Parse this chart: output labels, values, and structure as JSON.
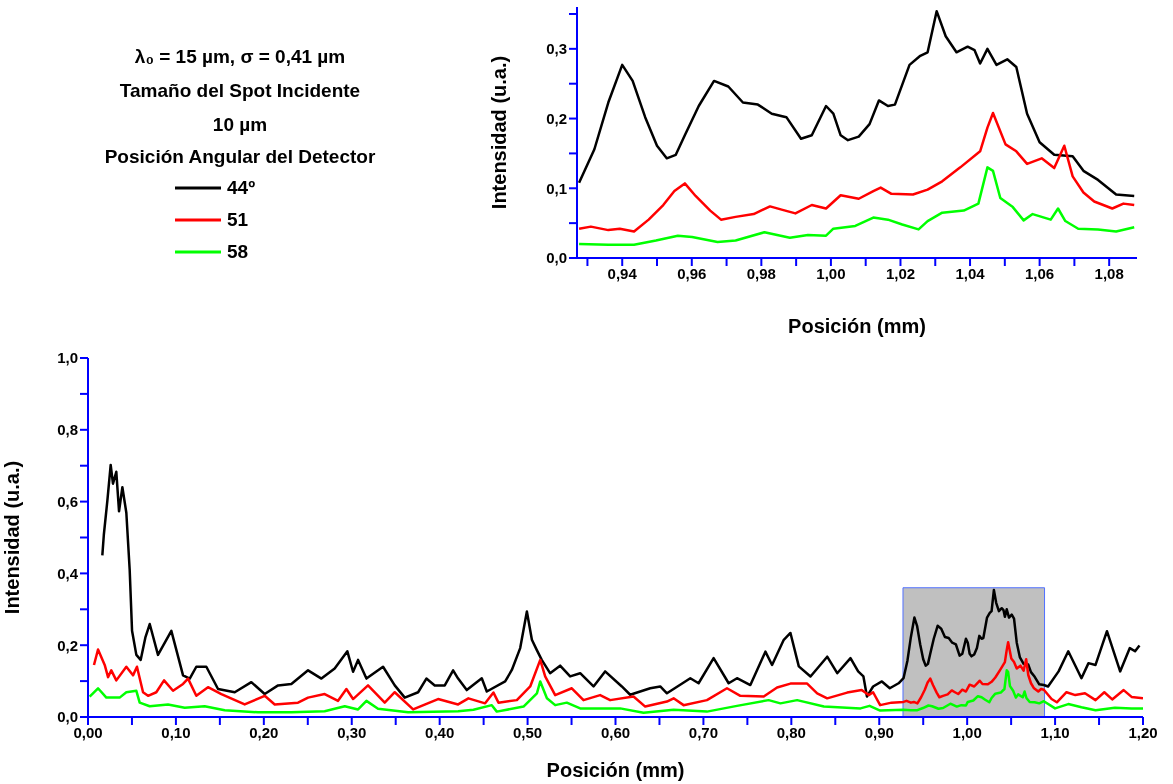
{
  "chart_data": [
    {
      "type": "line",
      "xlabel": "Posición (mm)",
      "ylabel": "Intensidad (u.a.)",
      "legend": "left",
      "legend_title": "Posición Angular del Detector",
      "annotations": [
        "λ₀ = 15  µm, σ = 0,41 µm",
        "Tamaño del Spot Incidente",
        "10 µm"
      ],
      "xlim": [
        0.927,
        1.088
      ],
      "ylim": [
        0,
        0.36
      ],
      "xticks": [
        {
          "value": 0.93,
          "label": null
        },
        {
          "value": 0.94,
          "label": "0,94"
        },
        {
          "value": 0.95,
          "label": null
        },
        {
          "value": 0.96,
          "label": "0,96"
        },
        {
          "value": 0.97,
          "label": null
        },
        {
          "value": 0.98,
          "label": "0,98"
        },
        {
          "value": 0.99,
          "label": null
        },
        {
          "value": 1.0,
          "label": "1,00"
        },
        {
          "value": 1.01,
          "label": null
        },
        {
          "value": 1.02,
          "label": "1,02"
        },
        {
          "value": 1.03,
          "label": null
        },
        {
          "value": 1.04,
          "label": "1,04"
        },
        {
          "value": 1.05,
          "label": null
        },
        {
          "value": 1.06,
          "label": "1,06"
        },
        {
          "value": 1.07,
          "label": null
        },
        {
          "value": 1.08,
          "label": "1,08"
        }
      ],
      "yticks": [
        {
          "value": 0,
          "label": "0,0"
        },
        {
          "value": 0.05,
          "label": null
        },
        {
          "value": 0.1,
          "label": "0,1"
        },
        {
          "value": 0.15,
          "label": null
        },
        {
          "value": 0.2,
          "label": "0,2"
        },
        {
          "value": 0.25,
          "label": null
        },
        {
          "value": 0.3,
          "label": "0,3"
        },
        {
          "value": 0.35,
          "label": null
        }
      ],
      "series": [
        {
          "name": "44º",
          "color": "#000000",
          "x": [
            0.9276,
            0.932,
            0.936,
            0.94,
            0.943,
            0.9466,
            0.95,
            0.9528,
            0.9554,
            0.958,
            0.962,
            0.9664,
            0.9705,
            0.9747,
            0.979,
            0.983,
            0.9872,
            0.9914,
            0.9945,
            0.9986,
            1.0007,
            1.0028,
            1.0049,
            1.008,
            1.0111,
            1.0138,
            1.0164,
            1.0184,
            1.0226,
            1.0257,
            1.0278,
            1.0304,
            1.033,
            1.0361,
            1.0393,
            1.0413,
            1.0429,
            1.045,
            1.0476,
            1.0507,
            1.0533,
            1.0564,
            1.06,
            1.0642,
            1.0695,
            1.0726,
            1.0768,
            1.082,
            1.0872
          ],
          "values": [
            0.108,
            0.156,
            0.223,
            0.277,
            0.254,
            0.202,
            0.161,
            0.143,
            0.148,
            0.176,
            0.218,
            0.254,
            0.246,
            0.223,
            0.22,
            0.207,
            0.202,
            0.171,
            0.176,
            0.218,
            0.207,
            0.176,
            0.169,
            0.174,
            0.192,
            0.226,
            0.218,
            0.22,
            0.277,
            0.29,
            0.295,
            0.354,
            0.318,
            0.295,
            0.303,
            0.298,
            0.279,
            0.3,
            0.277,
            0.285,
            0.274,
            0.207,
            0.166,
            0.148,
            0.146,
            0.125,
            0.112,
            0.091,
            0.089
          ]
        },
        {
          "name": "51",
          "color": "#ff0000",
          "x": [
            0.9276,
            0.931,
            0.936,
            0.9393,
            0.9434,
            0.9476,
            0.9518,
            0.955,
            0.958,
            0.9611,
            0.9653,
            0.9684,
            0.9726,
            0.9778,
            0.9825,
            0.9861,
            0.9898,
            0.9945,
            0.9986,
            1.0028,
            1.008,
            1.0122,
            1.0143,
            1.0174,
            1.0236,
            1.0278,
            1.032,
            1.0372,
            1.0429,
            1.045,
            1.0466,
            1.0502,
            1.0533,
            1.0564,
            1.0606,
            1.0642,
            1.0671,
            1.0695,
            1.0726,
            1.0757,
            1.0809,
            1.0841,
            1.0872
          ],
          "values": [
            0.042,
            0.045,
            0.04,
            0.042,
            0.038,
            0.055,
            0.076,
            0.096,
            0.107,
            0.089,
            0.068,
            0.055,
            0.059,
            0.063,
            0.074,
            0.069,
            0.064,
            0.076,
            0.071,
            0.09,
            0.085,
            0.096,
            0.101,
            0.092,
            0.091,
            0.098,
            0.11,
            0.13,
            0.153,
            0.187,
            0.208,
            0.163,
            0.153,
            0.135,
            0.143,
            0.129,
            0.161,
            0.117,
            0.094,
            0.081,
            0.071,
            0.078,
            0.076
          ]
        },
        {
          "name": "58",
          "color": "#00ff00",
          "x": [
            0.9276,
            0.936,
            0.9434,
            0.9497,
            0.956,
            0.9601,
            0.9674,
            0.9726,
            0.9809,
            0.9882,
            0.9934,
            0.9986,
            1.0007,
            1.007,
            1.0122,
            1.0164,
            1.0205,
            1.0252,
            1.0278,
            1.032,
            1.0382,
            1.0424,
            1.045,
            1.0466,
            1.0487,
            1.0523,
            1.0554,
            1.058,
            1.0632,
            1.0653,
            1.0674,
            1.0711,
            1.0768,
            1.082,
            1.0872
          ],
          "values": [
            0.02,
            0.019,
            0.019,
            0.025,
            0.032,
            0.03,
            0.023,
            0.025,
            0.037,
            0.029,
            0.033,
            0.032,
            0.042,
            0.046,
            0.058,
            0.055,
            0.048,
            0.041,
            0.053,
            0.065,
            0.068,
            0.078,
            0.13,
            0.125,
            0.086,
            0.073,
            0.054,
            0.063,
            0.055,
            0.071,
            0.053,
            0.042,
            0.041,
            0.038,
            0.044
          ]
        }
      ]
    },
    {
      "type": "line",
      "xlabel": "Posición (mm)",
      "ylabel": "Intensidad (u.a.)",
      "xlim": [
        0,
        1.2
      ],
      "ylim": [
        0,
        1.0
      ],
      "bands": [
        {
          "axis": "x",
          "from": 0.927,
          "to": 1.088,
          "color": "#c0c0c0"
        }
      ],
      "xticks": [
        {
          "value": 0,
          "label": "0,00"
        },
        {
          "value": 0.05,
          "label": null
        },
        {
          "value": 0.1,
          "label": "0,10"
        },
        {
          "value": 0.15,
          "label": null
        },
        {
          "value": 0.2,
          "label": "0,20"
        },
        {
          "value": 0.25,
          "label": null
        },
        {
          "value": 0.3,
          "label": "0,30"
        },
        {
          "value": 0.35,
          "label": null
        },
        {
          "value": 0.4,
          "label": "0,40"
        },
        {
          "value": 0.45,
          "label": null
        },
        {
          "value": 0.5,
          "label": "0,50"
        },
        {
          "value": 0.55,
          "label": null
        },
        {
          "value": 0.6,
          "label": "0,60"
        },
        {
          "value": 0.65,
          "label": null
        },
        {
          "value": 0.7,
          "label": "0,70"
        },
        {
          "value": 0.75,
          "label": null
        },
        {
          "value": 0.8,
          "label": "0,80"
        },
        {
          "value": 0.85,
          "label": null
        },
        {
          "value": 0.9,
          "label": "0,90"
        },
        {
          "value": 0.95,
          "label": null
        },
        {
          "value": 1.0,
          "label": "1,00"
        },
        {
          "value": 1.05,
          "label": null
        },
        {
          "value": 1.1,
          "label": "1,10"
        },
        {
          "value": 1.15,
          "label": null
        },
        {
          "value": 1.2,
          "label": "1,20"
        }
      ],
      "yticks": [
        {
          "value": 0,
          "label": "0,0"
        },
        {
          "value": 0.1,
          "label": null
        },
        {
          "value": 0.2,
          "label": "0,2"
        },
        {
          "value": 0.3,
          "label": null
        },
        {
          "value": 0.4,
          "label": "0,4"
        },
        {
          "value": 0.5,
          "label": null
        },
        {
          "value": 0.6,
          "label": "0,6"
        },
        {
          "value": 0.7,
          "label": null
        },
        {
          "value": 0.8,
          "label": "0,8"
        },
        {
          "value": 0.9,
          "label": null
        },
        {
          "value": 1.0,
          "label": "1,0"
        }
      ],
      "series": [
        {
          "color": "#000000",
          "x": [
            0.0163,
            0.018,
            0.022,
            0.0258,
            0.0284,
            0.0322,
            0.0353,
            0.0391,
            0.0436,
            0.0474,
            0.0501,
            0.055,
            0.0599,
            0.0652,
            0.0702,
            0.0796,
            0.0948,
            0.1081,
            0.1157,
            0.1232,
            0.1346,
            0.1479,
            0.1669,
            0.1858,
            0.201,
            0.2162,
            0.2313,
            0.2503,
            0.2655,
            0.2806,
            0.295,
            0.3015,
            0.3072,
            0.3167,
            0.3356,
            0.3489,
            0.3603,
            0.3755,
            0.3849,
            0.3944,
            0.4058,
            0.4153,
            0.421,
            0.4308,
            0.4479,
            0.4536,
            0.4745,
            0.4821,
            0.4916,
            0.4992,
            0.5049,
            0.5104,
            0.5161,
            0.5256,
            0.537,
            0.5484,
            0.5598,
            0.575,
            0.5882,
            0.6072,
            0.6167,
            0.6395,
            0.6509,
            0.6585,
            0.6851,
            0.6945,
            0.7116,
            0.7287,
            0.7382,
            0.7534,
            0.7705,
            0.7781,
            0.7914,
            0.799,
            0.8085,
            0.8218,
            0.8408,
            0.8522,
            0.8673,
            0.876,
            0.882,
            0.886,
            0.893,
            0.903,
            0.912,
            0.922,
            0.9276,
            0.932,
            0.936,
            0.94,
            0.943,
            0.9466,
            0.95,
            0.9528,
            0.9554,
            0.958,
            0.962,
            0.9664,
            0.9705,
            0.9747,
            0.979,
            0.983,
            0.9872,
            0.9914,
            0.9945,
            0.9986,
            1.0007,
            1.0028,
            1.0049,
            1.008,
            1.0111,
            1.0138,
            1.0164,
            1.0184,
            1.0226,
            1.0257,
            1.0278,
            1.0304,
            1.033,
            1.0361,
            1.0393,
            1.0413,
            1.0429,
            1.045,
            1.0476,
            1.0507,
            1.0533,
            1.0564,
            1.06,
            1.0642,
            1.0695,
            1.0726,
            1.0768,
            1.082,
            1.0872,
            1.092,
            1.104,
            1.115,
            1.13,
            1.138,
            1.146,
            1.159,
            1.174,
            1.185,
            1.191,
            1.196
          ],
          "values": [
            0.45,
            0.507,
            0.602,
            0.702,
            0.65,
            0.683,
            0.573,
            0.64,
            0.569,
            0.411,
            0.24,
            0.173,
            0.159,
            0.221,
            0.259,
            0.173,
            0.24,
            0.116,
            0.107,
            0.14,
            0.14,
            0.078,
            0.069,
            0.097,
            0.064,
            0.088,
            0.092,
            0.13,
            0.107,
            0.135,
            0.183,
            0.126,
            0.159,
            0.107,
            0.14,
            0.088,
            0.054,
            0.069,
            0.107,
            0.088,
            0.088,
            0.13,
            0.107,
            0.075,
            0.108,
            0.071,
            0.099,
            0.131,
            0.192,
            0.294,
            0.215,
            0.187,
            0.159,
            0.122,
            0.143,
            0.113,
            0.122,
            0.085,
            0.127,
            0.085,
            0.062,
            0.08,
            0.085,
            0.066,
            0.108,
            0.094,
            0.164,
            0.094,
            0.108,
            0.089,
            0.182,
            0.145,
            0.215,
            0.234,
            0.141,
            0.113,
            0.168,
            0.122,
            0.164,
            0.127,
            0.113,
            0.057,
            0.085,
            0.099,
            0.08,
            0.094,
            0.108,
            0.156,
            0.223,
            0.277,
            0.254,
            0.202,
            0.161,
            0.143,
            0.148,
            0.176,
            0.218,
            0.254,
            0.246,
            0.223,
            0.22,
            0.207,
            0.202,
            0.171,
            0.176,
            0.218,
            0.207,
            0.176,
            0.169,
            0.174,
            0.192,
            0.226,
            0.218,
            0.22,
            0.277,
            0.29,
            0.295,
            0.354,
            0.318,
            0.295,
            0.303,
            0.298,
            0.279,
            0.3,
            0.277,
            0.285,
            0.274,
            0.207,
            0.166,
            0.148,
            0.146,
            0.125,
            0.112,
            0.091,
            0.089,
            0.085,
            0.127,
            0.183,
            0.108,
            0.15,
            0.145,
            0.239,
            0.127,
            0.192,
            0.183,
            0.199
          ]
        },
        {
          "color": "#ff0000",
          "x": [
            0.0068,
            0.0114,
            0.019,
            0.0228,
            0.0265,
            0.0322,
            0.0436,
            0.0512,
            0.0557,
            0.0626,
            0.0683,
            0.0777,
            0.0865,
            0.0967,
            0.1081,
            0.1138,
            0.1232,
            0.1365,
            0.1517,
            0.1782,
            0.201,
            0.2124,
            0.2389,
            0.2503,
            0.2692,
            0.2844,
            0.2939,
            0.3015,
            0.3185,
            0.3375,
            0.3489,
            0.3698,
            0.3982,
            0.421,
            0.4327,
            0.4517,
            0.4612,
            0.4669,
            0.4878,
            0.503,
            0.5144,
            0.52,
            0.5314,
            0.5503,
            0.5636,
            0.5825,
            0.5939,
            0.6205,
            0.6338,
            0.6585,
            0.6661,
            0.6774,
            0.704,
            0.7268,
            0.742,
            0.7686,
            0.7838,
            0.799,
            0.818,
            0.8294,
            0.8408,
            0.8635,
            0.88,
            0.888,
            0.893,
            0.901,
            0.914,
            0.9276,
            0.931,
            0.936,
            0.9393,
            0.9434,
            0.9476,
            0.9518,
            0.955,
            0.958,
            0.9611,
            0.9653,
            0.9684,
            0.9726,
            0.9778,
            0.9825,
            0.9861,
            0.9898,
            0.9945,
            0.9986,
            1.0028,
            1.008,
            1.0122,
            1.0143,
            1.0174,
            1.0236,
            1.0278,
            1.032,
            1.0372,
            1.0429,
            1.045,
            1.0466,
            1.0502,
            1.0533,
            1.0564,
            1.0606,
            1.0642,
            1.0671,
            1.0695,
            1.0726,
            1.0757,
            1.0809,
            1.0841,
            1.0872,
            1.096,
            1.102,
            1.113,
            1.123,
            1.134,
            1.146,
            1.156,
            1.165,
            1.178,
            1.187,
            1.2
          ],
          "values": [
            0.145,
            0.188,
            0.145,
            0.111,
            0.13,
            0.102,
            0.14,
            0.116,
            0.14,
            0.069,
            0.059,
            0.069,
            0.102,
            0.073,
            0.092,
            0.107,
            0.059,
            0.083,
            0.064,
            0.035,
            0.059,
            0.035,
            0.04,
            0.054,
            0.064,
            0.045,
            0.078,
            0.05,
            0.088,
            0.04,
            0.069,
            0.021,
            0.05,
            0.035,
            0.052,
            0.038,
            0.068,
            0.04,
            0.047,
            0.085,
            0.159,
            0.113,
            0.061,
            0.08,
            0.047,
            0.061,
            0.047,
            0.057,
            0.029,
            0.043,
            0.052,
            0.033,
            0.047,
            0.08,
            0.059,
            0.057,
            0.082,
            0.093,
            0.093,
            0.066,
            0.052,
            0.068,
            0.075,
            0.061,
            0.069,
            0.033,
            0.04,
            0.042,
            0.045,
            0.04,
            0.042,
            0.038,
            0.055,
            0.076,
            0.096,
            0.107,
            0.089,
            0.068,
            0.055,
            0.059,
            0.063,
            0.074,
            0.069,
            0.064,
            0.076,
            0.071,
            0.09,
            0.085,
            0.096,
            0.101,
            0.092,
            0.091,
            0.098,
            0.11,
            0.13,
            0.153,
            0.187,
            0.208,
            0.163,
            0.153,
            0.135,
            0.143,
            0.129,
            0.161,
            0.117,
            0.094,
            0.081,
            0.071,
            0.078,
            0.076,
            0.05,
            0.041,
            0.069,
            0.061,
            0.066,
            0.047,
            0.069,
            0.049,
            0.075,
            0.056,
            0.052
          ]
        },
        {
          "color": "#00ff00",
          "x": [
            0.0019,
            0.0114,
            0.0209,
            0.0265,
            0.036,
            0.0436,
            0.055,
            0.0588,
            0.0702,
            0.091,
            0.11,
            0.1327,
            0.1555,
            0.1934,
            0.2313,
            0.2692,
            0.292,
            0.3072,
            0.3167,
            0.3299,
            0.3641,
            0.421,
            0.4384,
            0.4593,
            0.465,
            0.4954,
            0.5106,
            0.5144,
            0.522,
            0.5314,
            0.5446,
            0.5598,
            0.6053,
            0.6319,
            0.6661,
            0.704,
            0.7382,
            0.7742,
            0.7876,
            0.8066,
            0.837,
            0.8787,
            0.889,
            0.901,
            0.9276,
            0.936,
            0.9434,
            0.9497,
            0.956,
            0.9601,
            0.9674,
            0.9726,
            0.9809,
            0.9882,
            0.9934,
            0.9986,
            1.0007,
            1.007,
            1.0122,
            1.0164,
            1.0205,
            1.0252,
            1.0278,
            1.032,
            1.0382,
            1.0424,
            1.045,
            1.0466,
            1.0487,
            1.0523,
            1.0554,
            1.058,
            1.0632,
            1.0653,
            1.0674,
            1.0711,
            1.0768,
            1.082,
            1.0872,
            1.1,
            1.115,
            1.13,
            1.146,
            1.168,
            1.187,
            1.2
          ],
          "values": [
            0.057,
            0.08,
            0.054,
            0.054,
            0.054,
            0.069,
            0.073,
            0.04,
            0.03,
            0.035,
            0.026,
            0.03,
            0.019,
            0.013,
            0.013,
            0.016,
            0.03,
            0.021,
            0.045,
            0.023,
            0.013,
            0.016,
            0.02,
            0.033,
            0.015,
            0.029,
            0.066,
            0.099,
            0.052,
            0.033,
            0.04,
            0.024,
            0.024,
            0.012,
            0.02,
            0.015,
            0.031,
            0.047,
            0.038,
            0.047,
            0.029,
            0.024,
            0.031,
            0.018,
            0.02,
            0.019,
            0.019,
            0.025,
            0.032,
            0.03,
            0.023,
            0.025,
            0.037,
            0.029,
            0.033,
            0.032,
            0.042,
            0.046,
            0.058,
            0.055,
            0.048,
            0.041,
            0.053,
            0.065,
            0.068,
            0.078,
            0.13,
            0.125,
            0.086,
            0.073,
            0.054,
            0.063,
            0.055,
            0.071,
            0.053,
            0.042,
            0.041,
            0.038,
            0.044,
            0.024,
            0.036,
            0.027,
            0.019,
            0.026,
            0.024,
            0.024
          ]
        }
      ]
    }
  ]
}
